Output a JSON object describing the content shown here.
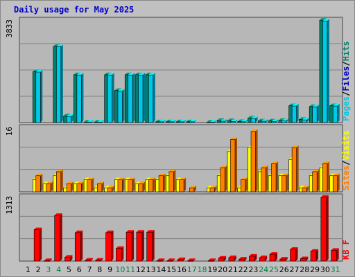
{
  "title": "Daily usage for May 2025",
  "weekend_days": [
    3,
    4,
    10,
    11,
    17,
    18,
    24,
    25,
    31
  ],
  "colors": {
    "panel_bg": "#b7b7b7",
    "grid": "#808080",
    "hits": "#00806b",
    "files": "#00c8e8",
    "pages": "#00a8d0",
    "visits": "#ffff00",
    "sites": "#ff8000",
    "kbf": "#ff0000",
    "weekend_label": "#008040",
    "weekday_label": "#000000"
  },
  "chart_data": [
    {
      "type": "bar",
      "name": "hits-files-pages",
      "y_max_label": "3833",
      "ylim": [
        0,
        3833
      ],
      "legend": [
        {
          "label": "Pages",
          "color": "#00c8e8"
        },
        {
          "label": "/",
          "color": "#000000"
        },
        {
          "label": "Files",
          "color": "#0000cc"
        },
        {
          "label": "/",
          "color": "#000000"
        },
        {
          "label": "Hits",
          "color": "#00806b"
        }
      ],
      "categories": [
        1,
        2,
        3,
        4,
        5,
        6,
        7,
        8,
        9,
        10,
        11,
        12,
        13,
        14,
        15,
        16,
        17,
        18,
        19,
        20,
        21,
        22,
        23,
        24,
        25,
        26,
        27,
        28,
        29,
        30,
        31
      ],
      "series": [
        {
          "name": "Hits",
          "values": [
            0,
            1900,
            0,
            2850,
            250,
            1790,
            20,
            20,
            1790,
            1200,
            1790,
            1790,
            1790,
            30,
            30,
            30,
            30,
            0,
            20,
            80,
            70,
            40,
            170,
            60,
            60,
            80,
            630,
            120,
            600,
            3830,
            630
          ]
        },
        {
          "name": "Files",
          "values": [
            0,
            1890,
            0,
            2840,
            230,
            1780,
            20,
            20,
            1780,
            1180,
            1780,
            1780,
            1780,
            30,
            30,
            30,
            30,
            0,
            20,
            50,
            40,
            30,
            150,
            50,
            40,
            60,
            620,
            100,
            590,
            3800,
            620
          ]
        }
      ]
    },
    {
      "type": "bar",
      "name": "visits-sites",
      "y_max_label": "16",
      "ylim": [
        0,
        16
      ],
      "legend": [
        {
          "label": "Sites",
          "color": "#ff8000"
        },
        {
          "label": "/",
          "color": "#000000"
        },
        {
          "label": "Visits",
          "color": "#ffff00"
        }
      ],
      "categories": [
        1,
        2,
        3,
        4,
        5,
        6,
        7,
        8,
        9,
        10,
        11,
        12,
        13,
        14,
        15,
        16,
        17,
        18,
        19,
        20,
        21,
        22,
        23,
        24,
        25,
        26,
        27,
        28,
        29,
        30,
        31
      ],
      "series": [
        {
          "name": "Visits",
          "values": [
            0,
            3,
            2,
            4,
            1,
            2,
            3,
            1,
            1,
            3,
            3,
            2,
            3,
            3,
            4,
            3,
            0,
            0,
            1,
            4,
            10,
            1,
            11,
            5,
            4,
            4,
            8,
            1,
            4,
            6,
            4
          ]
        },
        {
          "name": "Sites",
          "values": [
            0,
            4,
            2,
            5,
            2,
            2,
            3,
            2,
            1,
            3,
            3,
            2,
            3,
            4,
            5,
            3,
            1,
            0,
            1,
            6,
            13,
            3,
            15,
            6,
            7,
            4,
            11,
            1,
            5,
            7,
            4
          ]
        }
      ]
    },
    {
      "type": "bar",
      "name": "kbf",
      "y_max_label": "1313",
      "ylim": [
        0,
        1313
      ],
      "legend": [
        {
          "label": "KB F",
          "color": "#ff0000"
        }
      ],
      "categories": [
        1,
        2,
        3,
        4,
        5,
        6,
        7,
        8,
        9,
        10,
        11,
        12,
        13,
        14,
        15,
        16,
        17,
        18,
        19,
        20,
        21,
        22,
        23,
        24,
        25,
        26,
        27,
        28,
        29,
        30,
        31
      ],
      "series": [
        {
          "name": "KB F",
          "values": [
            0,
            640,
            10,
            930,
            80,
            580,
            20,
            20,
            580,
            260,
            590,
            590,
            590,
            10,
            10,
            30,
            10,
            0,
            10,
            60,
            70,
            40,
            100,
            70,
            140,
            40,
            240,
            50,
            200,
            1300,
            220
          ]
        }
      ]
    }
  ]
}
